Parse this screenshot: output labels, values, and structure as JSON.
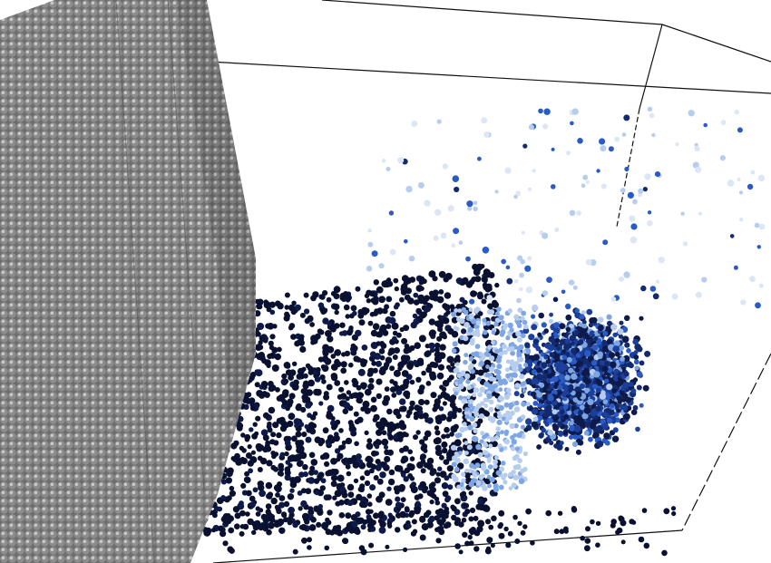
{
  "scene": {
    "kind": "particle-simulation-render",
    "colors": {
      "background": "#ffffff",
      "wall": "#8a8a8a",
      "wall_highlight": "#c8c8c8",
      "wall_shadow": "#555555",
      "box_outline": "#111111",
      "particle_palette": [
        "#0a1030",
        "#0d1a4a",
        "#132a6e",
        "#1b3f9a",
        "#2a5bc4",
        "#4a7fd8",
        "#7ea6e3",
        "#b7cdee",
        "#dde6f5"
      ]
    }
  }
}
